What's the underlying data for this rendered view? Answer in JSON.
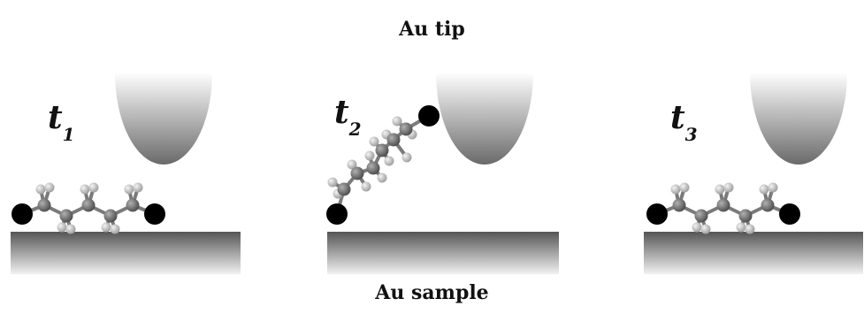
{
  "labels": {
    "tip": "Au tip",
    "sample": "Au sample"
  },
  "panels": [
    {
      "id": "t1",
      "label_main": "t",
      "label_sub": "1",
      "state": "flat"
    },
    {
      "id": "t2",
      "label_main": "t",
      "label_sub": "2",
      "state": "bridged"
    },
    {
      "id": "t3",
      "label_main": "t",
      "label_sub": "3",
      "state": "flat"
    }
  ],
  "colors": {
    "sulfur_atom": "#000000",
    "carbon_atom": "#707070",
    "hydrogen_atom": "#d0d0d0",
    "surface_dark": "#555555",
    "surface_light": "#f0f0f0",
    "tip_dark": "#666666",
    "tip_light": "#ffffff"
  }
}
